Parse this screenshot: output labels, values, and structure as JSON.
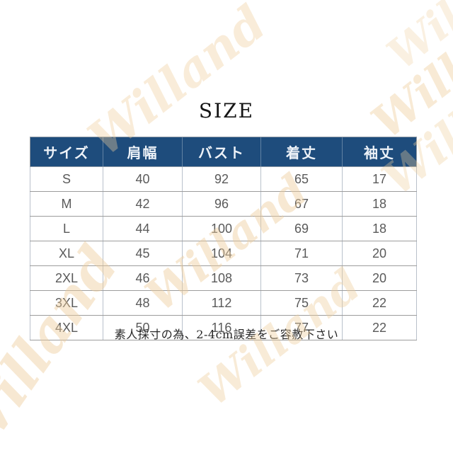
{
  "page": {
    "title": "SIZE",
    "note": "素人採寸の為、2-4cm誤差をご容赦下さい",
    "watermark": "Willand",
    "colors": {
      "header_bg": "#1e4c7c",
      "header_text": "#edf2f8",
      "cell_text": "#5a5a5a",
      "border_horizontal": "#9c9c9c",
      "border_vertical": "#b9c1cb",
      "watermark": "#eecd9b"
    }
  },
  "size_table": {
    "columns": [
      "サイズ",
      "肩幅",
      "バスト",
      "着丈",
      "袖丈"
    ],
    "rows": [
      [
        "S",
        "40",
        "92",
        "65",
        "17"
      ],
      [
        "M",
        "42",
        "96",
        "67",
        "18"
      ],
      [
        "L",
        "44",
        "100",
        "69",
        "18"
      ],
      [
        "XL",
        "45",
        "104",
        "71",
        "20"
      ],
      [
        "2XL",
        "46",
        "108",
        "73",
        "20"
      ],
      [
        "3XL",
        "48",
        "112",
        "75",
        "22"
      ],
      [
        "4XL",
        "50",
        "116",
        "77",
        "22"
      ]
    ]
  }
}
